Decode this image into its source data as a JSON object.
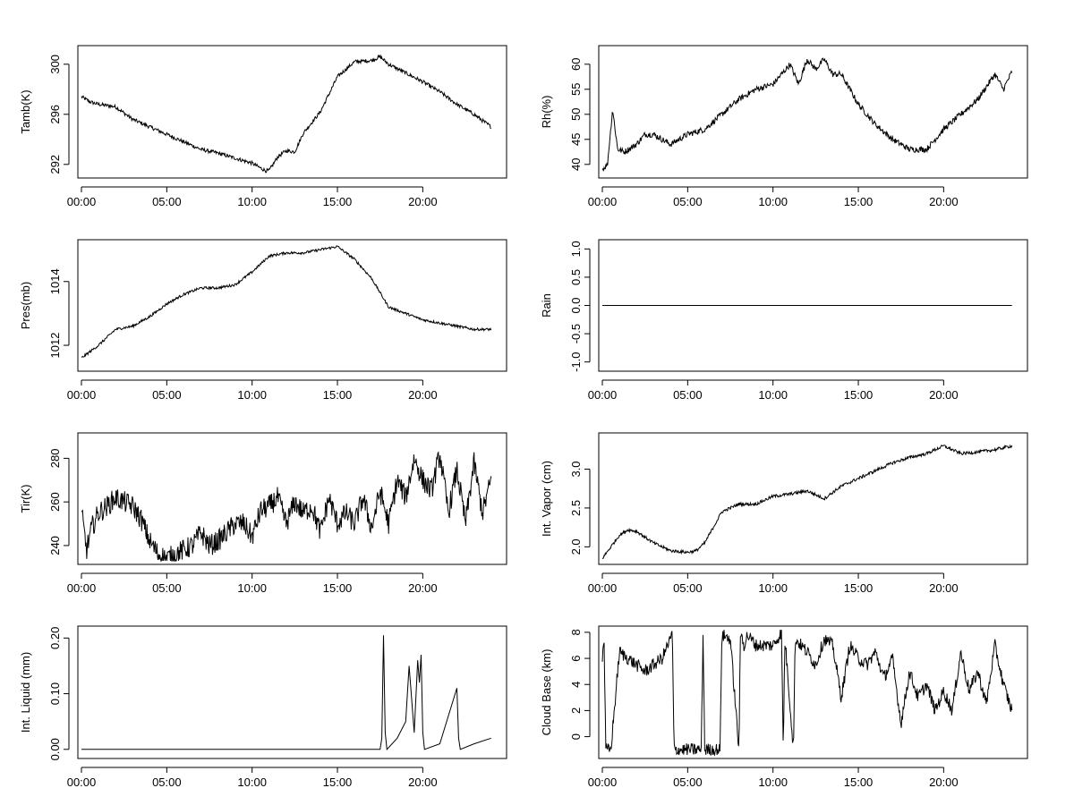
{
  "chart_data": [
    {
      "type": "line",
      "ylabel": "Tamb(K)",
      "xticks": [
        "00:00",
        "05:00",
        "10:00",
        "15:00",
        "20:00"
      ],
      "yticks": [
        292,
        296,
        300
      ],
      "xlim": [
        0,
        24.7
      ],
      "ylim": [
        291.2,
        301.2
      ],
      "x": [
        0,
        0.5,
        1,
        2,
        3,
        4,
        5,
        6,
        7,
        8,
        9,
        10,
        10.5,
        10.8,
        11,
        11.5,
        12,
        12.5,
        13,
        14,
        15,
        16,
        17,
        17.5,
        18,
        19,
        20,
        21,
        22,
        23,
        24
      ],
      "y": [
        297.4,
        297.0,
        296.8,
        296.6,
        295.6,
        295.0,
        294.4,
        293.8,
        293.2,
        292.9,
        292.5,
        292.1,
        291.7,
        291.5,
        291.5,
        292.6,
        293.1,
        293.0,
        294.5,
        296.2,
        299.0,
        300.2,
        300.3,
        300.6,
        300.0,
        299.3,
        298.6,
        297.8,
        296.8,
        296.0,
        295.0
      ],
      "amp": 0.15
    },
    {
      "type": "line",
      "ylabel": "Rh(%)",
      "xticks": [
        "00:00",
        "05:00",
        "10:00",
        "15:00",
        "20:00"
      ],
      "yticks": [
        40,
        45,
        50,
        55,
        60
      ],
      "xlim": [
        0,
        24.7
      ],
      "ylim": [
        38,
        63
      ],
      "x": [
        0,
        0.3,
        0.6,
        0.9,
        1.3,
        2,
        2.5,
        3,
        3.5,
        4,
        5,
        6,
        7,
        8,
        9,
        10,
        11,
        11.5,
        12,
        12.5,
        13,
        13.5,
        14,
        15,
        16,
        17,
        18,
        19,
        20,
        21,
        22,
        23,
        23.5,
        24
      ],
      "y": [
        39,
        40,
        51,
        43,
        42.5,
        44,
        46,
        46,
        45,
        44,
        46,
        47,
        50,
        53,
        55,
        56,
        60,
        56,
        61,
        59,
        61,
        58,
        58,
        52,
        48,
        45,
        43,
        43,
        47,
        50,
        53,
        58,
        55,
        58.5
      ],
      "amp": 0.6
    },
    {
      "type": "line",
      "ylabel": "Pres(mb)",
      "xticks": [
        "00:00",
        "05:00",
        "10:00",
        "15:00",
        "20:00"
      ],
      "yticks": [
        1012,
        1014
      ],
      "xlim": [
        0,
        24.7
      ],
      "ylim": [
        1011.3,
        1015.2
      ],
      "x": [
        0,
        1,
        2,
        3,
        4,
        5,
        6,
        7,
        8,
        9,
        10,
        11,
        12,
        13,
        14,
        15,
        16,
        17,
        18,
        19,
        20,
        21,
        22,
        23,
        24
      ],
      "y": [
        1011.6,
        1012.0,
        1012.5,
        1012.6,
        1012.9,
        1013.3,
        1013.6,
        1013.8,
        1013.8,
        1013.9,
        1014.3,
        1014.8,
        1014.9,
        1014.9,
        1015.0,
        1015.1,
        1014.7,
        1014.1,
        1013.2,
        1013.0,
        1012.8,
        1012.7,
        1012.6,
        1012.5,
        1012.5
      ],
      "amp": 0.04
    },
    {
      "type": "line",
      "ylabel": "Rain",
      "xticks": [
        "00:00",
        "05:00",
        "10:00",
        "15:00",
        "20:00"
      ],
      "yticks": [
        -1.0,
        -0.5,
        0.0,
        0.5,
        1.0
      ],
      "ytick_labels": [
        "-1.0",
        "-0.5",
        "0.0",
        "0.5",
        "1.0"
      ],
      "xlim": [
        0,
        24.7
      ],
      "ylim": [
        -1.1,
        1.1
      ],
      "x": [
        0,
        24
      ],
      "y": [
        0,
        0
      ],
      "amp": 0
    },
    {
      "type": "line",
      "ylabel": "Tir(K)",
      "xticks": [
        "00:00",
        "05:00",
        "10:00",
        "15:00",
        "20:00"
      ],
      "yticks": [
        240,
        260,
        280
      ],
      "xlim": [
        0,
        24.7
      ],
      "ylim": [
        233,
        290
      ],
      "x": [
        0,
        0.3,
        0.6,
        1,
        1.5,
        2,
        2.5,
        3,
        3.5,
        4,
        4.5,
        5,
        5.5,
        6,
        6.5,
        7,
        7.5,
        8,
        8.5,
        9,
        9.5,
        10,
        10.5,
        11,
        11.5,
        12,
        12.5,
        13,
        13.5,
        14,
        14.5,
        15,
        15.5,
        16,
        16.5,
        17,
        17.5,
        18,
        18.5,
        19,
        19.5,
        20,
        20.5,
        21,
        21.5,
        22,
        22.5,
        23,
        23.5,
        24
      ],
      "y": [
        255,
        238,
        248,
        255,
        258,
        262,
        260,
        258,
        252,
        242,
        236,
        234,
        236,
        238,
        240,
        246,
        240,
        242,
        246,
        250,
        250,
        244,
        256,
        258,
        262,
        250,
        260,
        255,
        258,
        246,
        262,
        250,
        255,
        250,
        262,
        248,
        265,
        250,
        270,
        262,
        280,
        270,
        265,
        282,
        255,
        275,
        250,
        278,
        255,
        270
      ],
      "amp": 5
    },
    {
      "type": "line",
      "ylabel": "Int. Vapor (cm)",
      "xticks": [
        "00:00",
        "05:00",
        "10:00",
        "15:00",
        "20:00"
      ],
      "yticks": [
        2.0,
        2.5,
        3.0
      ],
      "ytick_labels": [
        "2.0",
        "2.5",
        "3.0"
      ],
      "xlim": [
        0,
        24.7
      ],
      "ylim": [
        1.82,
        3.42
      ],
      "x": [
        0,
        0.5,
        1,
        1.5,
        2,
        3,
        4,
        5,
        5.5,
        6,
        7,
        8,
        9,
        10,
        11,
        12,
        13,
        14,
        15,
        16,
        17,
        18,
        19,
        20,
        21,
        22,
        23,
        24
      ],
      "y": [
        1.85,
        2.0,
        2.15,
        2.22,
        2.2,
        2.05,
        1.95,
        1.93,
        1.95,
        2.05,
        2.45,
        2.55,
        2.55,
        2.65,
        2.68,
        2.72,
        2.62,
        2.78,
        2.88,
        2.98,
        3.08,
        3.15,
        3.2,
        3.3,
        3.2,
        3.22,
        3.25,
        3.3
      ],
      "amp": 0.02
    },
    {
      "type": "line",
      "ylabel": "Int. Liquid (mm)",
      "xticks": [
        "00:00",
        "05:00",
        "10:00",
        "15:00",
        "20:00"
      ],
      "yticks": [
        0.0,
        0.1,
        0.2
      ],
      "ytick_labels": [
        "0.00",
        "0.10",
        "0.20"
      ],
      "xlim": [
        0,
        24.7
      ],
      "ylim": [
        -0.01,
        0.215
      ],
      "x": [
        0,
        17.5,
        17.6,
        17.7,
        17.8,
        17.9,
        18.5,
        19,
        19.2,
        19.5,
        19.7,
        19.8,
        19.9,
        20,
        20.1,
        21,
        22,
        22.1,
        22.2,
        23,
        24
      ],
      "y": [
        0,
        0,
        0.02,
        0.205,
        0.03,
        0,
        0.02,
        0.05,
        0.15,
        0.03,
        0.16,
        0.12,
        0.17,
        0.03,
        0,
        0.01,
        0.11,
        0.02,
        0,
        0.01,
        0.02
      ],
      "amp": 0
    },
    {
      "type": "line",
      "ylabel": "Cloud Base (km)",
      "xticks": [
        "00:00",
        "05:00",
        "10:00",
        "15:00",
        "20:00"
      ],
      "yticks": [
        0,
        2,
        4,
        6,
        8
      ],
      "xlim": [
        0,
        24.7
      ],
      "ylim": [
        -1.4,
        8.2
      ],
      "x": [
        0,
        0.1,
        0.2,
        0.5,
        1,
        1.5,
        2,
        2.5,
        3,
        3.5,
        4,
        4.1,
        4.2,
        5,
        5.8,
        5.9,
        6,
        6.9,
        7,
        7.5,
        8,
        8.1,
        8.3,
        8.5,
        9,
        10,
        10.5,
        10.6,
        10.7,
        11.2,
        11.3,
        12,
        12.5,
        13,
        13.5,
        14,
        14.5,
        15,
        15.5,
        16,
        16.5,
        17,
        17.5,
        18,
        18.5,
        19,
        19.5,
        20,
        20.5,
        21,
        21.5,
        22,
        22.5,
        23,
        23.5,
        24
      ],
      "y": [
        6,
        7.7,
        -1,
        -1,
        6.5,
        6,
        5.5,
        5,
        5.5,
        6,
        7.5,
        8,
        -1,
        -1,
        -1,
        8,
        -1,
        -1,
        7.8,
        7.5,
        -1,
        8,
        7,
        7.8,
        7,
        7,
        8,
        -1,
        7.5,
        -1,
        7.5,
        6.5,
        5.5,
        7.5,
        7,
        3,
        7,
        6,
        5.5,
        6.5,
        4.5,
        6,
        1,
        5,
        3,
        4,
        2,
        3.5,
        2,
        6.5,
        3.5,
        5,
        2.5,
        7,
        4,
        2
      ],
      "amp": 0.5
    }
  ]
}
